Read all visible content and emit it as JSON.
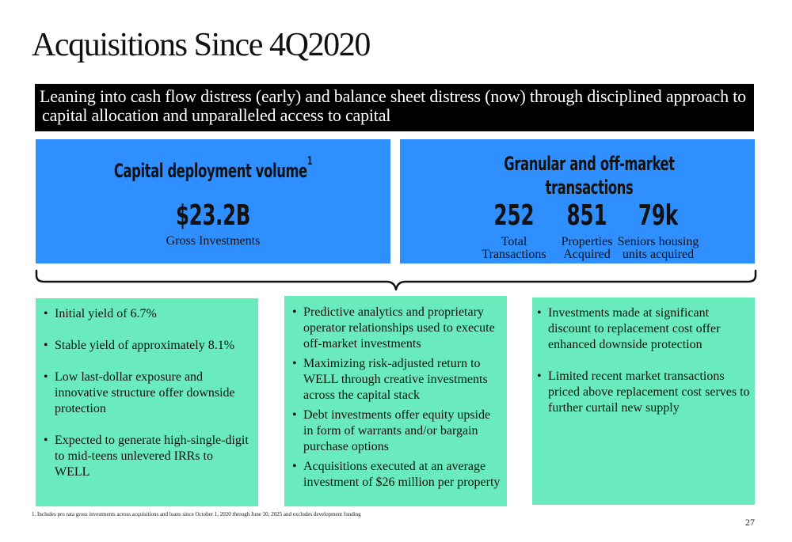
{
  "title": "Acquisitions Since 4Q2020",
  "banner": {
    "line1": "Leaning into cash flow distress (early) and balance sheet distress (now) through disciplined approach to",
    "line2": "capital allocation and unparalleled access to capital"
  },
  "left_panel": {
    "title": "Capital deployment volume",
    "footnote_marker": "1",
    "value": "$23.2B",
    "caption": "Gross Investments"
  },
  "right_panel": {
    "title_line1": "Granular and off-market",
    "title_line2": "transactions",
    "stats": [
      {
        "value": "252",
        "label_line1": "Total",
        "label_line2": "Transactions"
      },
      {
        "value": "851",
        "label_line1": "Properties",
        "label_line2": "Acquired"
      },
      {
        "value": "79k",
        "label_line1": "Seniors housing",
        "label_line2": "units acquired"
      }
    ]
  },
  "cards": [
    {
      "bullets": [
        "Initial yield of 6.7%",
        "Stable yield of approximately 8.1%",
        "Low last-dollar exposure and innovative structure offer downside protection",
        "Expected to generate high-single-digit to mid-teens unlevered IRRs to WELL"
      ]
    },
    {
      "bullets": [
        "Predictive analytics and proprietary operator relationships used to execute off-market investments",
        "Maximizing risk-adjusted return to WELL through creative investments across the capital stack",
        "Debt investments offer equity upside in form of warrants and/or bargain purchase options",
        "Acquisitions executed at an average investment of $26 million per property"
      ]
    },
    {
      "bullets": [
        "Investments made at significant discount to replacement cost offer enhanced downside protection",
        "Limited recent market transactions priced above replacement cost serves to further curtail new supply"
      ]
    }
  ],
  "footnote": "1. Includes pro rata gross investments across acquisitions and loans since October 1, 2020 through June 30, 2025 and excludes development funding",
  "page_number": "27",
  "colors": {
    "blue_panel": "#2f8fff",
    "green_card": "#69ebbd",
    "banner_bg": "#000000"
  }
}
